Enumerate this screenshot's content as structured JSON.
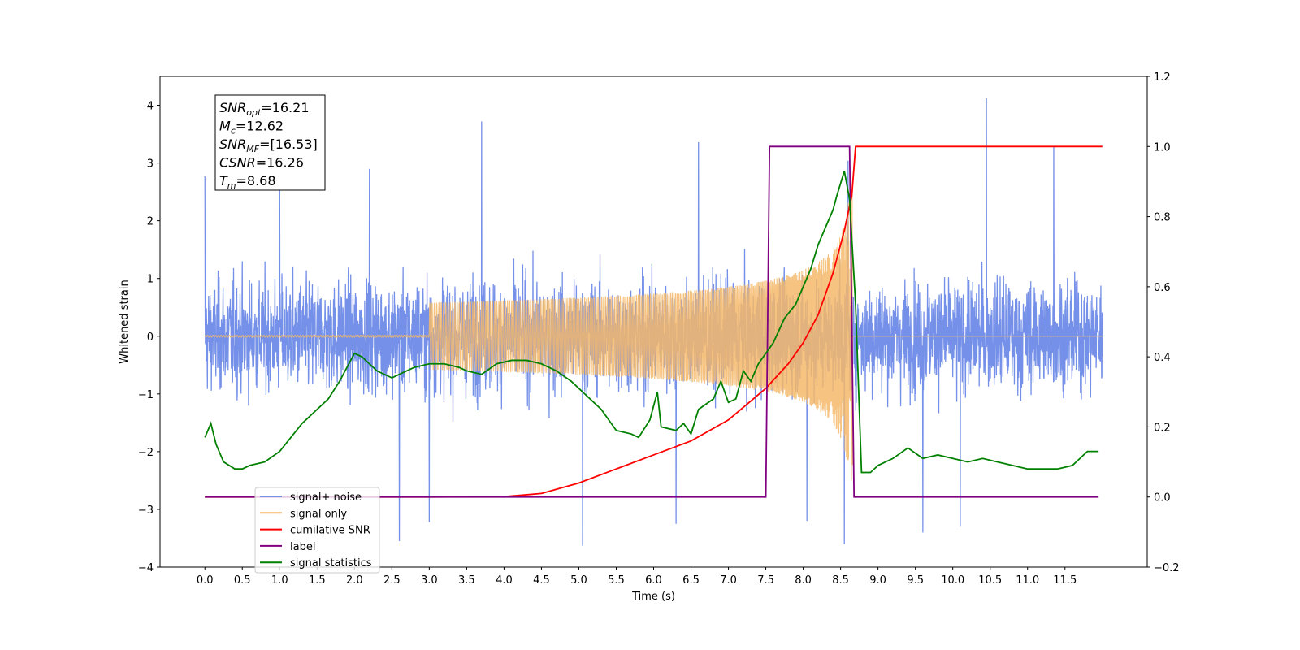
{
  "chart_data": {
    "type": "line",
    "title": "",
    "xlabel": "Time (s)",
    "ylabel": "Whitened strain",
    "y2label": "",
    "xlim": [
      -0.6,
      12.6
    ],
    "ylim": [
      -4,
      4.5
    ],
    "y2lim": [
      -0.2,
      1.2
    ],
    "xticks": [
      "0.0",
      "0.5",
      "1.0",
      "1.5",
      "2.0",
      "2.5",
      "3.0",
      "3.5",
      "4.0",
      "4.5",
      "5.0",
      "5.5",
      "6.0",
      "6.5",
      "7.0",
      "7.5",
      "8.0",
      "8.5",
      "9.0",
      "9.5",
      "10.0",
      "10.5",
      "11.0",
      "11.5"
    ],
    "yticks": [
      "-4",
      "-3",
      "-2",
      "-1",
      "0",
      "1",
      "2",
      "3",
      "4"
    ],
    "y2ticks": [
      "-0.2",
      "0.0",
      "0.2",
      "0.4",
      "0.6",
      "0.8",
      "1.0",
      "1.2"
    ],
    "grid": false,
    "legend_position": "lower-left",
    "annotation": {
      "lines": [
        {
          "symbol": "SNR",
          "sub": "opt",
          "value": "=16.21"
        },
        {
          "symbol": "M",
          "sub": "c",
          "value": "=12.62"
        },
        {
          "symbol": "SNR",
          "sub": "MF",
          "value": "=[16.53]"
        },
        {
          "symbol": "CSNR",
          "sub": "",
          "value": "=16.26"
        },
        {
          "symbol": "T",
          "sub": "m",
          "value": "=8.68"
        }
      ]
    },
    "series": [
      {
        "name": "signal+ noise",
        "color": "#7590e8",
        "axis": "left",
        "kind": "noise",
        "x_range": [
          0.0,
          12.0
        ],
        "typical_amplitude": 1.2,
        "peaks": [
          {
            "x": 0.0,
            "y": 2.77
          },
          {
            "x": 1.0,
            "y": 2.9
          },
          {
            "x": 2.2,
            "y": 2.9
          },
          {
            "x": 3.7,
            "y": 3.72
          },
          {
            "x": 6.6,
            "y": 3.36
          },
          {
            "x": 8.6,
            "y": 3.04
          },
          {
            "x": 10.45,
            "y": 4.12
          },
          {
            "x": 11.35,
            "y": 3.28
          },
          {
            "x": 2.6,
            "y": -3.55
          },
          {
            "x": 3.0,
            "y": -3.22
          },
          {
            "x": 5.05,
            "y": -3.63
          },
          {
            "x": 6.3,
            "y": -3.25
          },
          {
            "x": 8.05,
            "y": -3.2
          },
          {
            "x": 8.55,
            "y": -3.6
          },
          {
            "x": 9.6,
            "y": -3.4
          },
          {
            "x": 10.1,
            "y": -3.3
          }
        ]
      },
      {
        "name": "signal only",
        "color": "#f5b96a",
        "axis": "left",
        "kind": "chirp",
        "x_range": [
          0.0,
          12.0
        ],
        "merger_time": 8.68,
        "peak_amplitude": 2.5
      },
      {
        "name": "cumilative SNR",
        "color": "#ff0000",
        "axis": "right",
        "points": [
          [
            0.0,
            0.0
          ],
          [
            3.0,
            0.0
          ],
          [
            4.0,
            0.001
          ],
          [
            4.5,
            0.01
          ],
          [
            5.0,
            0.04
          ],
          [
            5.5,
            0.08
          ],
          [
            6.0,
            0.12
          ],
          [
            6.5,
            0.16
          ],
          [
            7.0,
            0.22
          ],
          [
            7.5,
            0.31
          ],
          [
            7.8,
            0.38
          ],
          [
            8.0,
            0.44
          ],
          [
            8.2,
            0.52
          ],
          [
            8.4,
            0.64
          ],
          [
            8.55,
            0.76
          ],
          [
            8.65,
            0.86
          ],
          [
            8.7,
            1.0
          ],
          [
            12.0,
            1.0
          ]
        ]
      },
      {
        "name": "label",
        "color": "#800080",
        "axis": "right",
        "points": [
          [
            0.0,
            0.0
          ],
          [
            7.5,
            0.0
          ],
          [
            7.55,
            1.0
          ],
          [
            8.62,
            1.0
          ],
          [
            8.68,
            0.0
          ],
          [
            11.95,
            0.0
          ]
        ]
      },
      {
        "name": "signal statistics",
        "color": "#008000",
        "axis": "right",
        "points": [
          [
            0.0,
            0.17
          ],
          [
            0.08,
            0.21
          ],
          [
            0.15,
            0.15
          ],
          [
            0.25,
            0.1
          ],
          [
            0.4,
            0.08
          ],
          [
            0.5,
            0.08
          ],
          [
            0.6,
            0.09
          ],
          [
            0.8,
            0.1
          ],
          [
            1.0,
            0.13
          ],
          [
            1.15,
            0.17
          ],
          [
            1.3,
            0.21
          ],
          [
            1.5,
            0.25
          ],
          [
            1.65,
            0.28
          ],
          [
            1.8,
            0.33
          ],
          [
            1.9,
            0.37
          ],
          [
            2.0,
            0.41
          ],
          [
            2.1,
            0.4
          ],
          [
            2.2,
            0.38
          ],
          [
            2.3,
            0.36
          ],
          [
            2.5,
            0.34
          ],
          [
            2.6,
            0.35
          ],
          [
            2.8,
            0.37
          ],
          [
            3.0,
            0.38
          ],
          [
            3.2,
            0.38
          ],
          [
            3.4,
            0.37
          ],
          [
            3.5,
            0.36
          ],
          [
            3.7,
            0.35
          ],
          [
            3.9,
            0.38
          ],
          [
            4.1,
            0.39
          ],
          [
            4.3,
            0.39
          ],
          [
            4.5,
            0.38
          ],
          [
            4.7,
            0.36
          ],
          [
            4.9,
            0.33
          ],
          [
            5.1,
            0.29
          ],
          [
            5.3,
            0.25
          ],
          [
            5.5,
            0.19
          ],
          [
            5.7,
            0.18
          ],
          [
            5.8,
            0.17
          ],
          [
            5.95,
            0.22
          ],
          [
            6.05,
            0.3
          ],
          [
            6.1,
            0.2
          ],
          [
            6.3,
            0.19
          ],
          [
            6.4,
            0.21
          ],
          [
            6.5,
            0.18
          ],
          [
            6.6,
            0.25
          ],
          [
            6.8,
            0.28
          ],
          [
            6.9,
            0.33
          ],
          [
            7.0,
            0.27
          ],
          [
            7.1,
            0.28
          ],
          [
            7.2,
            0.36
          ],
          [
            7.3,
            0.33
          ],
          [
            7.4,
            0.38
          ],
          [
            7.6,
            0.44
          ],
          [
            7.75,
            0.51
          ],
          [
            7.9,
            0.55
          ],
          [
            8.0,
            0.6
          ],
          [
            8.1,
            0.65
          ],
          [
            8.2,
            0.72
          ],
          [
            8.3,
            0.77
          ],
          [
            8.4,
            0.82
          ],
          [
            8.45,
            0.86
          ],
          [
            8.55,
            0.93
          ],
          [
            8.62,
            0.85
          ],
          [
            8.7,
            0.55
          ],
          [
            8.78,
            0.07
          ],
          [
            8.9,
            0.07
          ],
          [
            9.0,
            0.09
          ],
          [
            9.2,
            0.11
          ],
          [
            9.4,
            0.14
          ],
          [
            9.6,
            0.11
          ],
          [
            9.8,
            0.12
          ],
          [
            10.0,
            0.11
          ],
          [
            10.2,
            0.1
          ],
          [
            10.4,
            0.11
          ],
          [
            10.6,
            0.1
          ],
          [
            10.8,
            0.09
          ],
          [
            11.0,
            0.08
          ],
          [
            11.2,
            0.08
          ],
          [
            11.4,
            0.08
          ],
          [
            11.6,
            0.09
          ],
          [
            11.8,
            0.13
          ],
          [
            11.95,
            0.13
          ]
        ]
      }
    ]
  }
}
